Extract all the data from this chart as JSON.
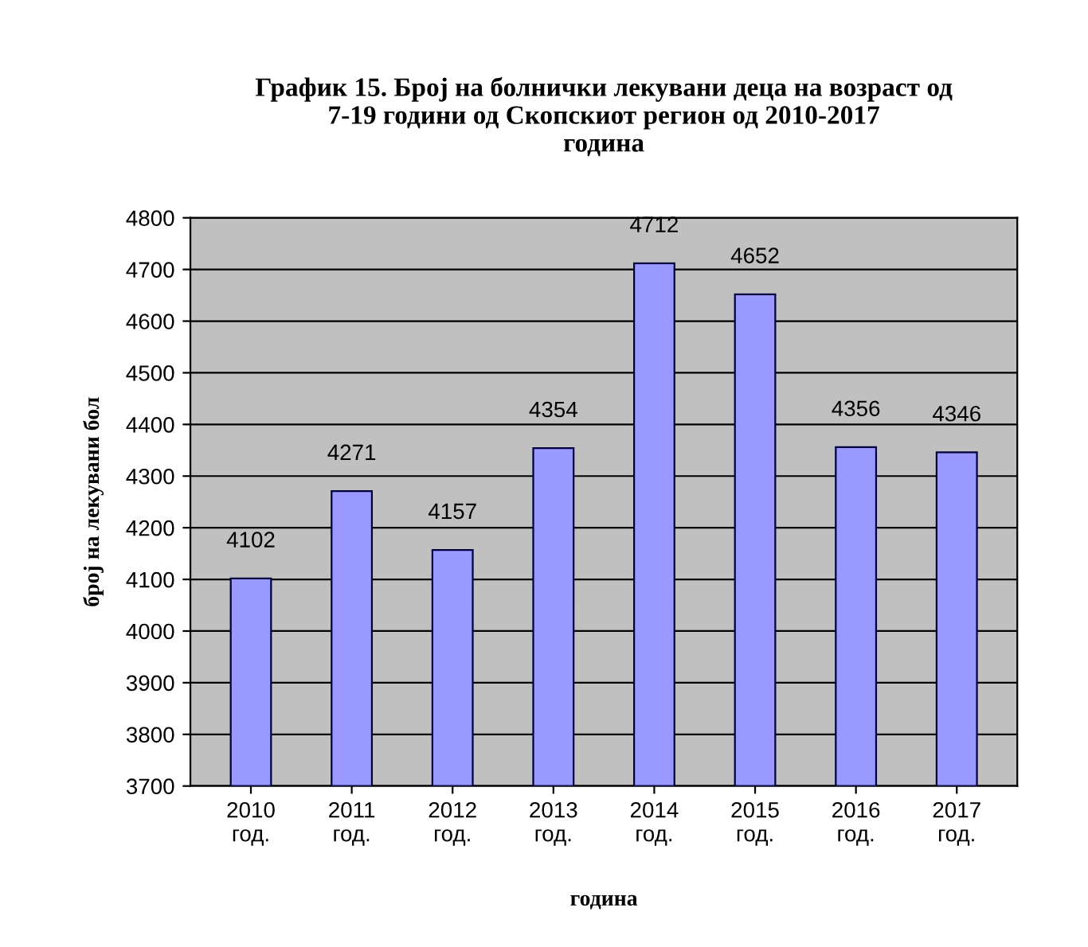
{
  "chart_data": {
    "type": "bar",
    "title": "График 15. Број на болнички лекувани деца на возраст од\n7-19 години од Скопскиот регион од 2010-2017\nгодина",
    "xlabel": "година",
    "ylabel": "број на лекувани бол",
    "categories": [
      "2010\nгод.",
      "2011\nгод.",
      "2012\nгод.",
      "2013\nгод.",
      "2014\nгод.",
      "2015\nгод.",
      "2016\nгод.",
      "2017\nгод."
    ],
    "values": [
      4102,
      4271,
      4157,
      4354,
      4712,
      4652,
      4356,
      4346
    ],
    "color": "#9999ff",
    "ylim": [
      3700,
      4800
    ],
    "yticks": [
      3700,
      3800,
      3900,
      4000,
      4100,
      4200,
      4300,
      4400,
      4500,
      4600,
      4700,
      4800
    ],
    "grid": "y",
    "data_labels": true
  }
}
